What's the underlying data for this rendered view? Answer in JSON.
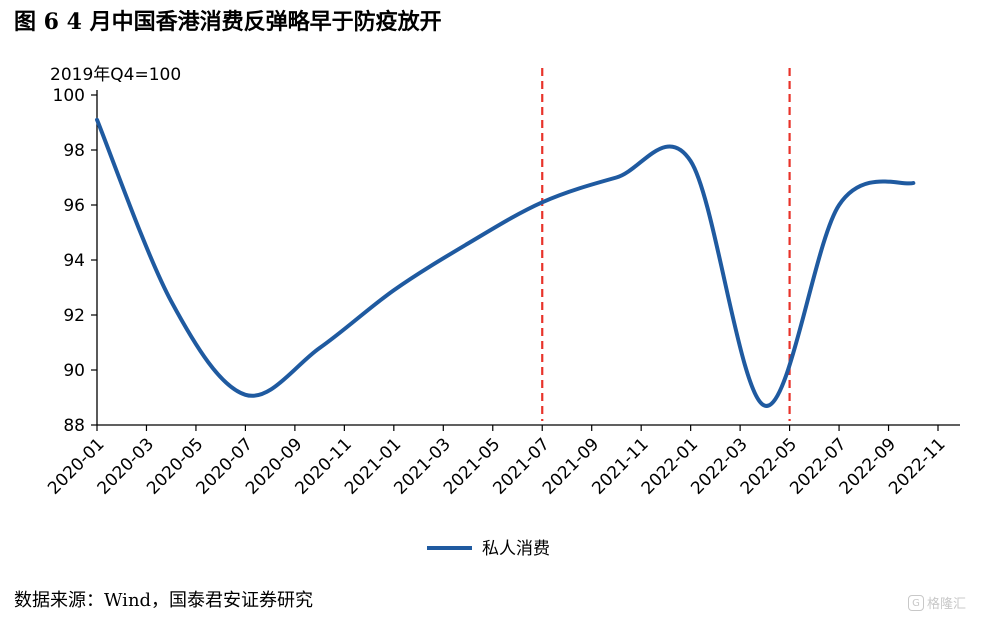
{
  "title": "图  6 4 月中国香港消费反弹略早于防疫放开",
  "unit_note": "2019年Q4=100",
  "source": "数据来源：Wind，国泰君安证券研究",
  "watermark": {
    "icon": "G",
    "text": "格隆汇"
  },
  "colors": {
    "series": "#1f5aa0",
    "vline": "#e8332a",
    "axis": "#000000"
  },
  "chart_data": {
    "type": "line",
    "title": "6 4 月中国香港消费反弹略早于防疫放开",
    "ylabel": "2019年Q4=100",
    "xlabel": "",
    "ylim": [
      88,
      100
    ],
    "y_ticks": [
      88,
      90,
      92,
      94,
      96,
      98,
      100
    ],
    "x_ticks": [
      "2020-01",
      "2020-03",
      "2020-05",
      "2020-07",
      "2020-09",
      "2020-11",
      "2021-01",
      "2021-03",
      "2021-05",
      "2021-07",
      "2021-09",
      "2021-11",
      "2022-01",
      "2022-03",
      "2022-05",
      "2022-07",
      "2022-09",
      "2022-11"
    ],
    "grid": false,
    "legend_position": "bottom-center",
    "vertical_lines": [
      "2021-07",
      "2022-05"
    ],
    "series": [
      {
        "name": "私人消费",
        "x": [
          "2020-01",
          "2020-04",
          "2020-07",
          "2020-10",
          "2021-01",
          "2021-04",
          "2021-07",
          "2021-10",
          "2022-01",
          "2022-04",
          "2022-07",
          "2022-10"
        ],
        "values": [
          99.1,
          92.5,
          89.1,
          90.8,
          92.9,
          94.6,
          96.1,
          97.0,
          97.6,
          88.7,
          96.0,
          96.8
        ]
      }
    ]
  }
}
